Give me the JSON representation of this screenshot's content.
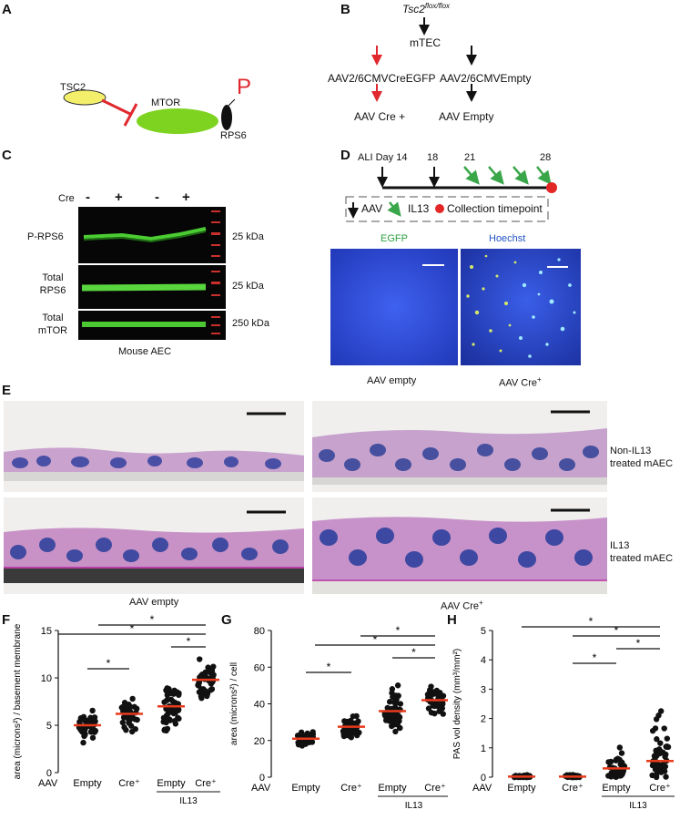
{
  "panel_letters": {
    "a": "A",
    "b": "B",
    "c": "C",
    "d": "D",
    "e": "E",
    "f": "F",
    "g": "G",
    "h": "H"
  },
  "panel_a": {
    "tsc2": "TSC2",
    "mtor": "MTOR",
    "p": "P",
    "rps6": "RPS6",
    "colors": {
      "tsc2": "#f3ef6a",
      "mtor": "#7ed321",
      "inhibit": "#e0282e",
      "phospho": "#e0282e"
    }
  },
  "panel_b": {
    "gene": "Tsc2",
    "gene_sup": "flox/flox",
    "mtec": "mTEC",
    "left_vector": "AAV2/6CMVCreEGFP",
    "right_vector": "AAV2/6CMVEmpty",
    "left_result": "AAV Cre +",
    "right_result": "AAV Empty"
  },
  "panel_c": {
    "cre_label": "Cre",
    "lanes": [
      "-",
      "+",
      "-",
      "+"
    ],
    "rows": [
      {
        "label_line1": "P-RPS6",
        "label_line2": "",
        "size": "25 kDa"
      },
      {
        "label_line1": "Total",
        "label_line2": "RPS6",
        "size": "25 kDa"
      },
      {
        "label_line1": "Total",
        "label_line2": "mTOR",
        "size": "250 kDa"
      }
    ],
    "caption": "Mouse AEC"
  },
  "panel_d": {
    "ali_day_label": "ALI Day",
    "days": [
      "14",
      "18",
      "21",
      "28"
    ],
    "legend_aav": "AAV",
    "legend_il13": "IL13",
    "legend_collection": "Collection timepoint",
    "egfp": "EGFP",
    "hoechst": "Hoechst",
    "caption_left": "AAV empty",
    "caption_right": "AAV Cre",
    "caption_right_sup": "+",
    "colors": {
      "aav": "#111111",
      "il13": "#3aa64a",
      "collection": "#e32626"
    }
  },
  "panel_e": {
    "row1_label_line1": "Non-IL13",
    "row1_label_line2": "treated mAEC",
    "row2_label_line1": "IL13",
    "row2_label_line2": "treated mAEC",
    "caption_left": "AAV empty",
    "caption_right": "AAV Cre",
    "caption_right_sup": "+"
  },
  "chart_data": [
    {
      "type": "scatter",
      "panel": "F",
      "ylabel": "area (microns²) / basement membrane",
      "ylim": [
        0,
        15
      ],
      "yticks": [
        "0",
        "5",
        "10",
        "15"
      ],
      "row_label": "AAV",
      "categories": [
        "Empty",
        "Cre⁺",
        "Empty",
        "Cre⁺"
      ],
      "group_label": "IL13",
      "means": [
        5.0,
        6.2,
        7.0,
        9.8
      ],
      "significance": "*"
    },
    {
      "type": "scatter",
      "panel": "G",
      "ylabel": "area (microns²) / cell",
      "ylim": [
        0,
        80
      ],
      "yticks": [
        "0",
        "20",
        "40",
        "60",
        "80"
      ],
      "row_label": "AAV",
      "categories": [
        "Empty",
        "Cre⁺",
        "Empty",
        "Cre⁺"
      ],
      "group_label": "IL13",
      "means": [
        21,
        27.5,
        36,
        42
      ],
      "significance": "*"
    },
    {
      "type": "scatter",
      "panel": "H",
      "ylabel": "PAS vol density (mm³/mm²)",
      "ylim": [
        0,
        5
      ],
      "yticks": [
        "0",
        "1",
        "2",
        "3",
        "4",
        "5"
      ],
      "row_label": "AAV",
      "categories": [
        "Empty",
        "Cre⁺",
        "Empty",
        "Cre⁺"
      ],
      "group_label": "IL13",
      "means": [
        0.02,
        0.02,
        0.3,
        0.55
      ],
      "significance": "*"
    }
  ]
}
